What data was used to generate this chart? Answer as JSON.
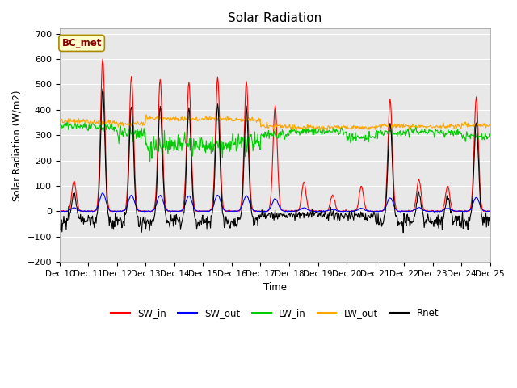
{
  "title": "Solar Radiation",
  "ylabel": "Solar Radiation (W/m2)",
  "xlabel": "Time",
  "annotation": "BC_met",
  "ylim": [
    -200,
    720
  ],
  "yticks": [
    -200,
    -100,
    0,
    100,
    200,
    300,
    400,
    500,
    600,
    700
  ],
  "n_days": 15,
  "x_tick_labels": [
    "Dec 10",
    "Dec 11",
    "Dec 12",
    "Dec 13",
    "Dec 14",
    "Dec 15",
    "Dec 16",
    "Dec 17",
    "Dec 18",
    "Dec 19",
    "Dec 20",
    "Dec 21",
    "Dec 22",
    "Dec 23",
    "Dec 24",
    "Dec 25"
  ],
  "series_colors": {
    "SW_in": "#FF0000",
    "SW_out": "#0000FF",
    "LW_in": "#00CC00",
    "LW_out": "#FFA500",
    "Rnet": "#000000"
  },
  "sw_in_peaks": [
    120,
    600,
    530,
    520,
    510,
    530,
    510,
    415,
    115,
    65,
    100,
    440,
    125,
    100,
    450
  ],
  "fig_facecolor": "#FFFFFF",
  "plot_facecolor": "#E8E8E8",
  "grid_color": "#FFFFFF",
  "annotation_bg": "#FFFFCC",
  "annotation_border": "#AA8800",
  "annotation_text_color": "#880000",
  "figsize": [
    6.4,
    4.8
  ],
  "dpi": 100
}
